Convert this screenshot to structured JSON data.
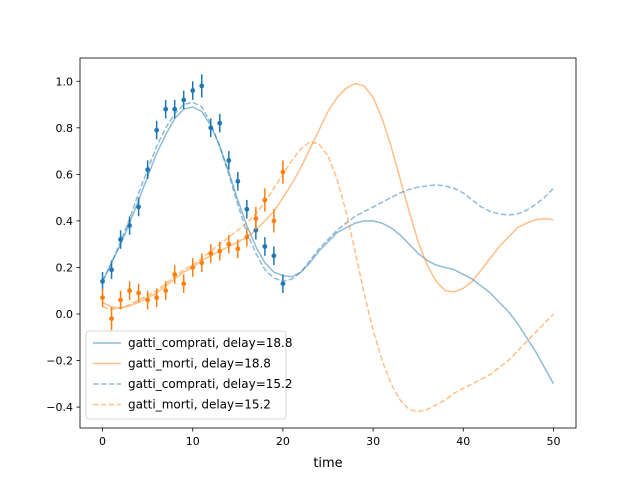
{
  "chart_data": {
    "type": "line",
    "xlabel": "time",
    "ylabel": "",
    "xlim": [
      -2.5,
      52.5
    ],
    "ylim": [
      -0.49,
      1.1
    ],
    "xticks": [
      0,
      10,
      20,
      30,
      40,
      50
    ],
    "yticks": [
      -0.4,
      -0.2,
      0.0,
      0.2,
      0.4,
      0.6,
      0.8,
      1.0
    ],
    "xtick_labels": [
      "0",
      "10",
      "20",
      "30",
      "40",
      "50"
    ],
    "ytick_labels": [
      "−0.4",
      "−0.2",
      "0.0",
      "0.2",
      "0.4",
      "0.6",
      "0.8",
      "1.0"
    ],
    "grid": false,
    "legend_position": "lower-left",
    "colors": {
      "blue": "#1f77b4",
      "orange": "#ff7f0e"
    },
    "series": [
      {
        "name": "gatti_comprati, delay=18.8",
        "style": "solid",
        "color": "#1f77b4",
        "x": [
          0,
          1,
          2,
          3,
          4,
          5,
          6,
          7,
          8,
          9,
          10,
          11,
          12,
          13,
          14,
          15,
          16,
          17,
          18,
          19,
          20,
          21,
          22,
          23,
          24,
          25,
          26,
          27,
          28,
          29,
          30,
          31,
          32,
          33,
          34,
          35,
          36,
          37,
          38,
          39,
          40,
          41,
          42,
          43,
          44,
          45,
          46,
          47,
          48,
          49,
          50
        ],
        "y": [
          0.14,
          0.22,
          0.3,
          0.39,
          0.49,
          0.59,
          0.69,
          0.77,
          0.84,
          0.88,
          0.89,
          0.87,
          0.81,
          0.72,
          0.61,
          0.49,
          0.38,
          0.29,
          0.22,
          0.18,
          0.165,
          0.16,
          0.18,
          0.22,
          0.27,
          0.31,
          0.35,
          0.37,
          0.39,
          0.4,
          0.4,
          0.39,
          0.37,
          0.34,
          0.3,
          0.26,
          0.23,
          0.21,
          0.2,
          0.19,
          0.17,
          0.15,
          0.12,
          0.09,
          0.05,
          0.01,
          -0.04,
          -0.1,
          -0.16,
          -0.23,
          -0.3
        ]
      },
      {
        "name": "gatti_morti, delay=18.8",
        "style": "solid",
        "color": "#ff7f0e",
        "x": [
          0,
          1,
          2,
          3,
          4,
          5,
          6,
          7,
          8,
          9,
          10,
          11,
          12,
          13,
          14,
          15,
          16,
          17,
          18,
          19,
          20,
          21,
          22,
          23,
          24,
          25,
          26,
          27,
          28,
          29,
          30,
          31,
          32,
          33,
          34,
          35,
          36,
          37,
          38,
          39,
          40,
          41,
          42,
          43,
          44,
          45,
          46,
          47,
          48,
          49,
          50
        ],
        "y": [
          0.05,
          0.03,
          0.025,
          0.035,
          0.05,
          0.07,
          0.09,
          0.12,
          0.15,
          0.18,
          0.2,
          0.23,
          0.25,
          0.27,
          0.29,
          0.31,
          0.33,
          0.36,
          0.4,
          0.44,
          0.5,
          0.56,
          0.63,
          0.71,
          0.79,
          0.87,
          0.93,
          0.97,
          0.99,
          0.98,
          0.93,
          0.84,
          0.72,
          0.58,
          0.44,
          0.31,
          0.21,
          0.14,
          0.1,
          0.095,
          0.11,
          0.14,
          0.19,
          0.24,
          0.29,
          0.33,
          0.37,
          0.39,
          0.405,
          0.41,
          0.405
        ]
      },
      {
        "name": "gatti_comprati, delay=15.2",
        "style": "dashed",
        "color": "#1f77b4",
        "x": [
          0,
          1,
          2,
          3,
          4,
          5,
          6,
          7,
          8,
          9,
          10,
          11,
          12,
          13,
          14,
          15,
          16,
          17,
          18,
          19,
          20,
          21,
          22,
          23,
          24,
          25,
          26,
          27,
          28,
          29,
          30,
          31,
          32,
          33,
          34,
          35,
          36,
          37,
          38,
          39,
          40,
          41,
          42,
          43,
          44,
          45,
          46,
          47,
          48,
          49,
          50
        ],
        "y": [
          0.14,
          0.22,
          0.31,
          0.41,
          0.52,
          0.62,
          0.72,
          0.8,
          0.86,
          0.9,
          0.91,
          0.89,
          0.82,
          0.72,
          0.6,
          0.47,
          0.35,
          0.26,
          0.19,
          0.155,
          0.14,
          0.15,
          0.18,
          0.23,
          0.28,
          0.32,
          0.36,
          0.39,
          0.42,
          0.44,
          0.46,
          0.48,
          0.5,
          0.52,
          0.535,
          0.545,
          0.55,
          0.555,
          0.55,
          0.54,
          0.52,
          0.49,
          0.46,
          0.44,
          0.43,
          0.425,
          0.43,
          0.445,
          0.47,
          0.5,
          0.54
        ]
      },
      {
        "name": "gatti_morti, delay=15.2",
        "style": "dashed",
        "color": "#ff7f0e",
        "x": [
          0,
          1,
          2,
          3,
          4,
          5,
          6,
          7,
          8,
          9,
          10,
          11,
          12,
          13,
          14,
          15,
          16,
          17,
          18,
          19,
          20,
          21,
          22,
          23,
          24,
          25,
          26,
          27,
          28,
          29,
          30,
          31,
          32,
          33,
          34,
          35,
          36,
          37,
          38,
          39,
          40,
          41,
          42,
          43,
          44,
          45,
          46,
          47,
          48,
          49,
          50
        ],
        "y": [
          0.03,
          0.02,
          0.025,
          0.04,
          0.06,
          0.08,
          0.1,
          0.13,
          0.16,
          0.19,
          0.21,
          0.24,
          0.27,
          0.3,
          0.33,
          0.36,
          0.39,
          0.43,
          0.48,
          0.54,
          0.6,
          0.66,
          0.71,
          0.74,
          0.73,
          0.68,
          0.58,
          0.44,
          0.27,
          0.09,
          -0.07,
          -0.2,
          -0.3,
          -0.37,
          -0.41,
          -0.42,
          -0.41,
          -0.39,
          -0.37,
          -0.34,
          -0.32,
          -0.3,
          -0.28,
          -0.26,
          -0.23,
          -0.2,
          -0.16,
          -0.12,
          -0.08,
          -0.04,
          0.0
        ]
      }
    ],
    "observations": [
      {
        "color": "#1f77b4",
        "x": [
          0,
          1,
          2,
          3,
          4,
          5,
          6,
          7,
          8,
          9,
          10,
          11,
          12,
          13,
          14,
          15,
          16,
          17,
          18,
          19,
          20
        ],
        "y": [
          0.14,
          0.19,
          0.32,
          0.38,
          0.46,
          0.62,
          0.79,
          0.88,
          0.88,
          0.92,
          0.96,
          0.98,
          0.8,
          0.82,
          0.66,
          0.57,
          0.45,
          0.36,
          0.29,
          0.25,
          0.13
        ],
        "err": [
          0.04,
          0.04,
          0.04,
          0.04,
          0.04,
          0.04,
          0.04,
          0.04,
          0.04,
          0.04,
          0.04,
          0.05,
          0.04,
          0.04,
          0.04,
          0.04,
          0.04,
          0.04,
          0.04,
          0.04,
          0.04
        ]
      },
      {
        "color": "#ff7f0e",
        "x": [
          0,
          1,
          2,
          3,
          4,
          5,
          6,
          7,
          8,
          9,
          10,
          11,
          12,
          13,
          14,
          15,
          16,
          17,
          18,
          19,
          20
        ],
        "y": [
          0.07,
          -0.02,
          0.06,
          0.1,
          0.09,
          0.06,
          0.07,
          0.1,
          0.17,
          0.13,
          0.2,
          0.22,
          0.26,
          0.27,
          0.3,
          0.28,
          0.33,
          0.41,
          0.49,
          0.4,
          0.61
        ],
        "err": [
          0.04,
          0.05,
          0.04,
          0.04,
          0.04,
          0.04,
          0.04,
          0.04,
          0.04,
          0.04,
          0.04,
          0.04,
          0.04,
          0.04,
          0.04,
          0.04,
          0.04,
          0.05,
          0.05,
          0.05,
          0.05
        ]
      }
    ]
  }
}
